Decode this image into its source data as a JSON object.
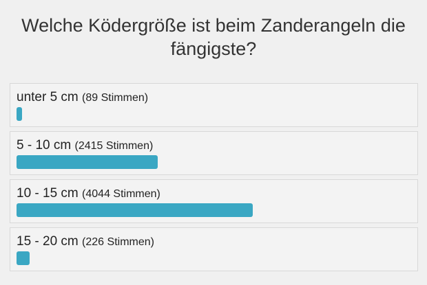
{
  "poll": {
    "question": "Welche Ködergröße ist beim Zanderangeln die fängigste?",
    "bar_color": "#3aa7c3",
    "max_votes": 4044,
    "options": [
      {
        "label": "unter 5 cm",
        "votes_text": "(89 Stimmen)",
        "votes": 89
      },
      {
        "label": "5 - 10 cm",
        "votes_text": "(2415 Stimmen)",
        "votes": 2415
      },
      {
        "label": "10 - 15 cm",
        "votes_text": "(4044 Stimmen)",
        "votes": 4044
      },
      {
        "label": "15 - 20 cm",
        "votes_text": "(226 Stimmen)",
        "votes": 226
      }
    ]
  }
}
